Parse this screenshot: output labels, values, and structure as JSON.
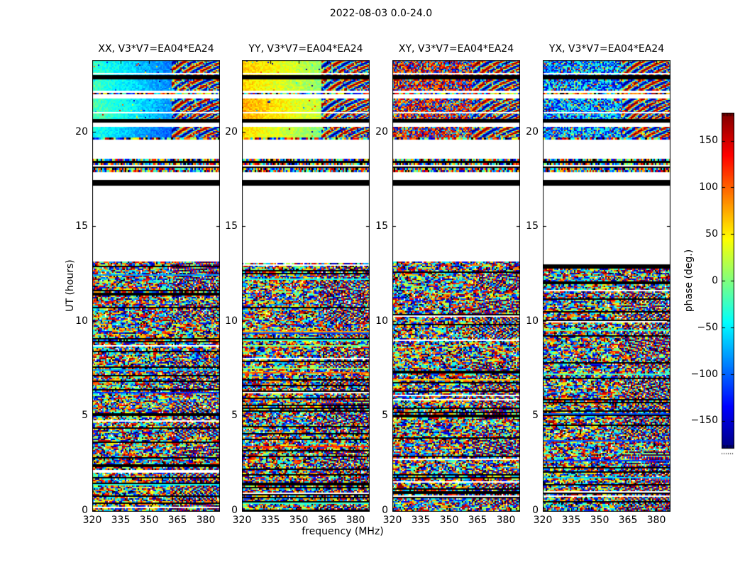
{
  "figure": {
    "title": "2022-08-03 0.0-24.0",
    "background": "#ffffff",
    "text_color": "#000000",
    "frame_color": "#000000"
  },
  "axes": {
    "x_label": "frequency (MHz)",
    "y_label": "UT (hours)",
    "x_ticks": [
      "320",
      "335",
      "350",
      "365",
      "380"
    ],
    "y_ticks_display": [
      "20",
      "15",
      "10",
      "5",
      "0"
    ]
  },
  "panels": [
    {
      "title": "XX, V3*V7=EA04*EA24",
      "pol": "XX",
      "render": {
        "style": "smooth",
        "base": -25,
        "slope": -0.6,
        "seed": 11
      }
    },
    {
      "title": "YY, V3*V7=EA04*EA24",
      "pol": "YY",
      "render": {
        "style": "smooth",
        "base": 62,
        "slope": -0.5,
        "seed": 22
      }
    },
    {
      "title": "XY, V3*V7=EA04*EA24",
      "pol": "XY",
      "render": {
        "style": "noisy",
        "bias": "warm",
        "seed": 33
      }
    },
    {
      "title": "YX, V3*V7=EA04*EA24",
      "pol": "YX",
      "render": {
        "style": "noisy",
        "bias": "cool",
        "seed": 44
      }
    }
  ],
  "colorbar": {
    "label": "phase (deg.)",
    "ticks": [
      "150",
      "100",
      "50",
      "0",
      "−50",
      "−100",
      "−150"
    ],
    "tick_values": [
      150,
      100,
      50,
      0,
      -50,
      -100,
      -150
    ],
    "vmin": -180,
    "vmax": 180,
    "colormap": "jet"
  },
  "chart_data": {
    "type": "heatmap",
    "title": "2022-08-03 0.0-24.0",
    "subplots": [
      "XX, V3*V7=EA04*EA24",
      "YY, V3*V7=EA04*EA24",
      "XY, V3*V7=EA04*EA24",
      "YX, V3*V7=EA04*EA24"
    ],
    "baseline": "V3*V7 = EA04*EA24",
    "polarizations": [
      "XX",
      "YY",
      "XY",
      "YX"
    ],
    "xlabel": "frequency (MHz)",
    "ylabel": "UT (hours)",
    "x_ticks": [
      320,
      335,
      350,
      365,
      380
    ],
    "y_ticks": [
      0,
      5,
      10,
      15,
      20
    ],
    "xlim": [
      320,
      387.5
    ],
    "ylim": [
      0,
      23.8
    ],
    "value_label": "phase (deg.)",
    "value_range": [
      -180,
      180
    ],
    "colormap": "jet",
    "fringe_zone_frequency_MHz": [
      361,
      387.5
    ],
    "time_segments": [
      {
        "t0": 23.0,
        "t1": 23.8,
        "kind": "scan",
        "white_line": 23.12
      },
      {
        "t0": 22.8,
        "t1": 23.0,
        "kind": "black"
      },
      {
        "t0": 22.2,
        "t1": 22.8,
        "kind": "scan"
      },
      {
        "t0": 22.1,
        "t1": 22.2,
        "kind": "gap"
      },
      {
        "t0": 22.0,
        "t1": 22.1,
        "kind": "speckle"
      },
      {
        "t0": 21.8,
        "t1": 22.0,
        "kind": "gap"
      },
      {
        "t0": 20.7,
        "t1": 21.8,
        "kind": "scan",
        "white_line": 21.07
      },
      {
        "t0": 20.5,
        "t1": 20.7,
        "kind": "black"
      },
      {
        "t0": 20.3,
        "t1": 20.5,
        "kind": "gap"
      },
      {
        "t0": 19.6,
        "t1": 20.3,
        "kind": "scan",
        "speckle_edge": true
      },
      {
        "t0": 18.6,
        "t1": 19.6,
        "kind": "gap"
      },
      {
        "t0": 17.8,
        "t1": 18.6,
        "kind": "cluster"
      },
      {
        "t0": 17.5,
        "t1": 17.8,
        "kind": "gap"
      },
      {
        "t0": 17.2,
        "t1": 17.5,
        "kind": "black"
      },
      {
        "t0": 13.2,
        "t1": 17.2,
        "kind": "gap"
      },
      {
        "t0": 0.0,
        "t1": 13.2,
        "kind": "noise"
      }
    ],
    "panel_character": {
      "XX": "smooth cyan-to-blue phase (~-30 to -110 deg) in upper scans, fringing above ~361 MHz",
      "YY": "smooth yellow-green-to-cyan phase (~+60 to 0 deg) in upper scans, fringing above ~361 MHz",
      "XY": "decorrelated red/blue phase noise in upper scans, fringing above ~361 MHz",
      "YX": "decorrelated blue-dominated phase noise in upper scans, fringing above ~361 MHz"
    }
  }
}
